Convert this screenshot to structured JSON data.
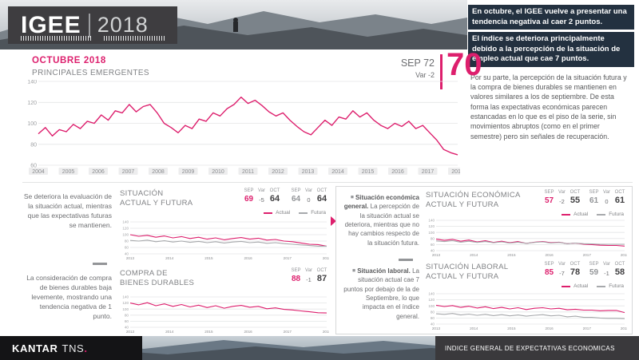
{
  "colors": {
    "accent": "#dd1f6d",
    "futura_line": "#a7a9ac",
    "highlight_bg": "#233140"
  },
  "header": {
    "logo_title": "IGEE",
    "logo_year": "2018",
    "highlight1": "En octubre, el IGEE vuelve a presentar una tendencia negativa al caer 2 puntos.",
    "highlight2": "El índice se deteriora principalmente debido a la percepción de la situación de empleo actual que cae 7 puntos.",
    "paragraph": "Por su parte, la percepción de la situación futura y la compra de bienes durables se mantienen en valores similares a los de septiembre. De esta forma las expectativas económicas parecen estancadas en lo que es el piso de la serie, sin movimientos abruptos (como en el primer semestre) pero sin señales de recuperación."
  },
  "main": {
    "month_title": "OCTUBRE 2018",
    "subtitle": "PRINCIPALES EMERGENTES"
  },
  "kpi": {
    "prev_label": "SEP",
    "prev_value": "72",
    "var_label": "Var",
    "var_value": "-2",
    "current": "70"
  },
  "stat_headers": [
    "SEP",
    "Var",
    "OCT"
  ],
  "legend": {
    "actual": "Actual",
    "futura": "Futura"
  },
  "notes_left": [
    {
      "body": "Se deteriora la evaluación de la situación actual, mientras que las expectativas futuras se mantienen."
    },
    {
      "body": "La consideración de compra de bienes durables baja levemente, mostrando una tendencia negativa de 1 punto."
    }
  ],
  "notes_right": [
    {
      "lead": "Situación económica general.",
      "body": " La percepción de la situación actual se deteriora, mientras que no hay cambios respecto de la situación futura."
    },
    {
      "lead": "Situación laboral.",
      "body": " La situación actual cae 7 puntos por debajo de la de Septiembre, lo que impacta en el índice general."
    }
  ],
  "panels": [
    {
      "title1": "SITUACIÓN",
      "title2": "ACTUAL Y FUTURA",
      "t1": [
        "69",
        "-5",
        "64"
      ],
      "t2": [
        "64",
        "0",
        "64"
      ]
    },
    {
      "title1": "COMPRA DE",
      "title2": "BIENES DURABLES",
      "t1": [
        "88",
        "-1",
        "87"
      ]
    },
    {
      "title1": "SITUACIÓN ECONÓMICA",
      "title2": "ACTUAL Y FUTURA",
      "t1": [
        "57",
        "-2",
        "55"
      ],
      "t2": [
        "61",
        "0",
        "61"
      ]
    },
    {
      "title1": "SITUACIÓN LABORAL",
      "title2": "ACTUAL Y FUTURA",
      "t1": [
        "85",
        "-7",
        "78"
      ],
      "t2": [
        "59",
        "-1",
        "58"
      ]
    }
  ],
  "footer": {
    "brand_main": "KANTAR",
    "brand_sub": "TNS",
    "brand_dot": ".",
    "bar_text": "INDICE GENERAL DE EXPECTATIVAS ECONOMICAS"
  },
  "chart_data": [
    {
      "type": "line",
      "title": "IGEE — Principales Emergentes 2004-2018",
      "ylim": [
        60,
        140
      ],
      "yticks": [
        140,
        120,
        100,
        80,
        60
      ],
      "xlabels": [
        "2004",
        "2005",
        "2006",
        "2007",
        "2008",
        "2009",
        "2010",
        "2011",
        "2012",
        "2013",
        "2014",
        "2015",
        "2016",
        "2017",
        "2018"
      ],
      "series": [
        {
          "name": "IGEE",
          "color": "#dd1f6d",
          "values": [
            90,
            96,
            88,
            94,
            92,
            99,
            95,
            102,
            100,
            108,
            103,
            112,
            110,
            118,
            111,
            116,
            118,
            110,
            100,
            96,
            91,
            98,
            95,
            104,
            102,
            110,
            107,
            114,
            118,
            125,
            119,
            122,
            117,
            111,
            107,
            110,
            103,
            97,
            92,
            89,
            96,
            103,
            98,
            106,
            104,
            112,
            106,
            110,
            103,
            98,
            95,
            100,
            97,
            102,
            95,
            98,
            91,
            84,
            75,
            72,
            70
          ]
        }
      ]
    },
    {
      "type": "line",
      "title": "Situación actual y futura",
      "ylim": [
        40,
        140
      ],
      "yticks": [
        140,
        120,
        100,
        80,
        60,
        40
      ],
      "xlabels": [
        "2013",
        "2014",
        "2015",
        "2016",
        "2017",
        "2018"
      ],
      "series": [
        {
          "name": "Actual",
          "color": "#dd1f6d",
          "values": [
            100,
            95,
            98,
            92,
            96,
            90,
            94,
            88,
            92,
            86,
            90,
            84,
            88,
            91,
            86,
            89,
            83,
            85,
            80,
            78,
            74,
            70,
            69,
            64
          ]
        },
        {
          "name": "Futura",
          "color": "#a7a9ac",
          "values": [
            82,
            80,
            83,
            78,
            81,
            77,
            80,
            76,
            79,
            75,
            78,
            74,
            77,
            79,
            75,
            77,
            73,
            75,
            72,
            70,
            68,
            66,
            64,
            64
          ]
        }
      ]
    },
    {
      "type": "line",
      "title": "Compra de bienes durables",
      "ylim": [
        40,
        140
      ],
      "yticks": [
        140,
        120,
        100,
        80,
        60,
        40
      ],
      "xlabels": [
        "2013",
        "2014",
        "2015",
        "2016",
        "2017",
        "2018"
      ],
      "series": [
        {
          "name": "Compra de bienes durables",
          "color": "#dd1f6d",
          "values": [
            120,
            114,
            121,
            111,
            117,
            109,
            115,
            107,
            113,
            105,
            111,
            103,
            109,
            112,
            106,
            109,
            101,
            104,
            99,
            97,
            94,
            91,
            88,
            87
          ]
        }
      ]
    },
    {
      "type": "line",
      "title": "Situación económica actual y futura",
      "ylim": [
        40,
        140
      ],
      "yticks": [
        140,
        120,
        100,
        80,
        60,
        40
      ],
      "xlabels": [
        "2013",
        "2014",
        "2015",
        "2016",
        "2017",
        "2018"
      ],
      "series": [
        {
          "name": "Actual",
          "color": "#dd1f6d",
          "values": [
            78,
            74,
            77,
            71,
            75,
            69,
            73,
            67,
            71,
            66,
            70,
            64,
            68,
            70,
            66,
            68,
            63,
            65,
            61,
            60,
            58,
            57,
            57,
            55
          ]
        },
        {
          "name": "Futura",
          "color": "#a7a9ac",
          "values": [
            72,
            70,
            73,
            68,
            71,
            67,
            70,
            66,
            69,
            65,
            68,
            64,
            67,
            69,
            65,
            67,
            63,
            65,
            63,
            62,
            61,
            61,
            61,
            61
          ]
        }
      ]
    },
    {
      "type": "line",
      "title": "Situación laboral actual y futura",
      "ylim": [
        40,
        140
      ],
      "yticks": [
        140,
        120,
        100,
        80,
        60,
        40
      ],
      "xlabels": [
        "2013",
        "2014",
        "2015",
        "2016",
        "2017",
        "2018"
      ],
      "series": [
        {
          "name": "Actual",
          "color": "#dd1f6d",
          "values": [
            102,
            98,
            101,
            95,
            99,
            93,
            97,
            91,
            95,
            90,
            94,
            88,
            92,
            94,
            90,
            92,
            87,
            89,
            86,
            86,
            84,
            85,
            85,
            78
          ]
        },
        {
          "name": "Futura",
          "color": "#a7a9ac",
          "values": [
            74,
            72,
            75,
            70,
            73,
            69,
            72,
            68,
            71,
            67,
            70,
            66,
            69,
            71,
            67,
            69,
            64,
            66,
            62,
            62,
            60,
            59,
            59,
            58
          ]
        }
      ]
    }
  ]
}
